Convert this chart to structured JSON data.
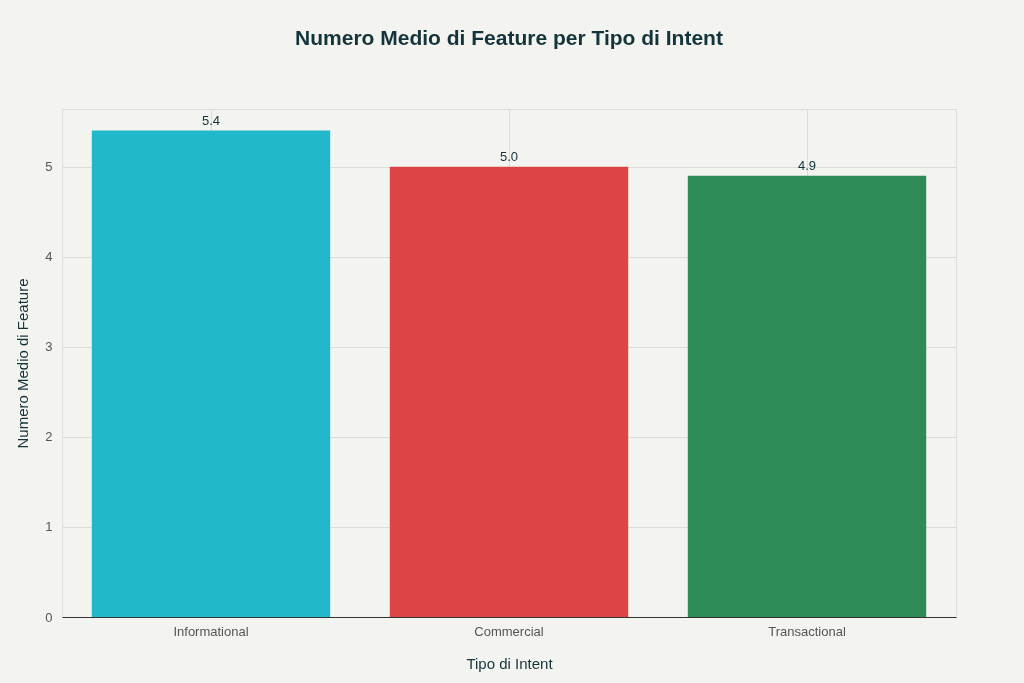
{
  "chart_data": {
    "type": "bar",
    "title": "Numero Medio di Feature per Tipo di Intent",
    "xlabel": "Tipo di Intent",
    "ylabel": "Numero Medio di Feature",
    "categories": [
      "Informational",
      "Commercial",
      "Transactional"
    ],
    "values": [
      5.4,
      5.0,
      4.9
    ],
    "value_labels": [
      "5.4",
      "5.0",
      "4.9"
    ],
    "colors": [
      "#21b8cc",
      "#db4545",
      "#2e8b57"
    ],
    "ylim": [
      0,
      5.64
    ],
    "yticks": [
      0,
      1,
      2,
      3,
      4,
      5
    ],
    "grid": true
  }
}
